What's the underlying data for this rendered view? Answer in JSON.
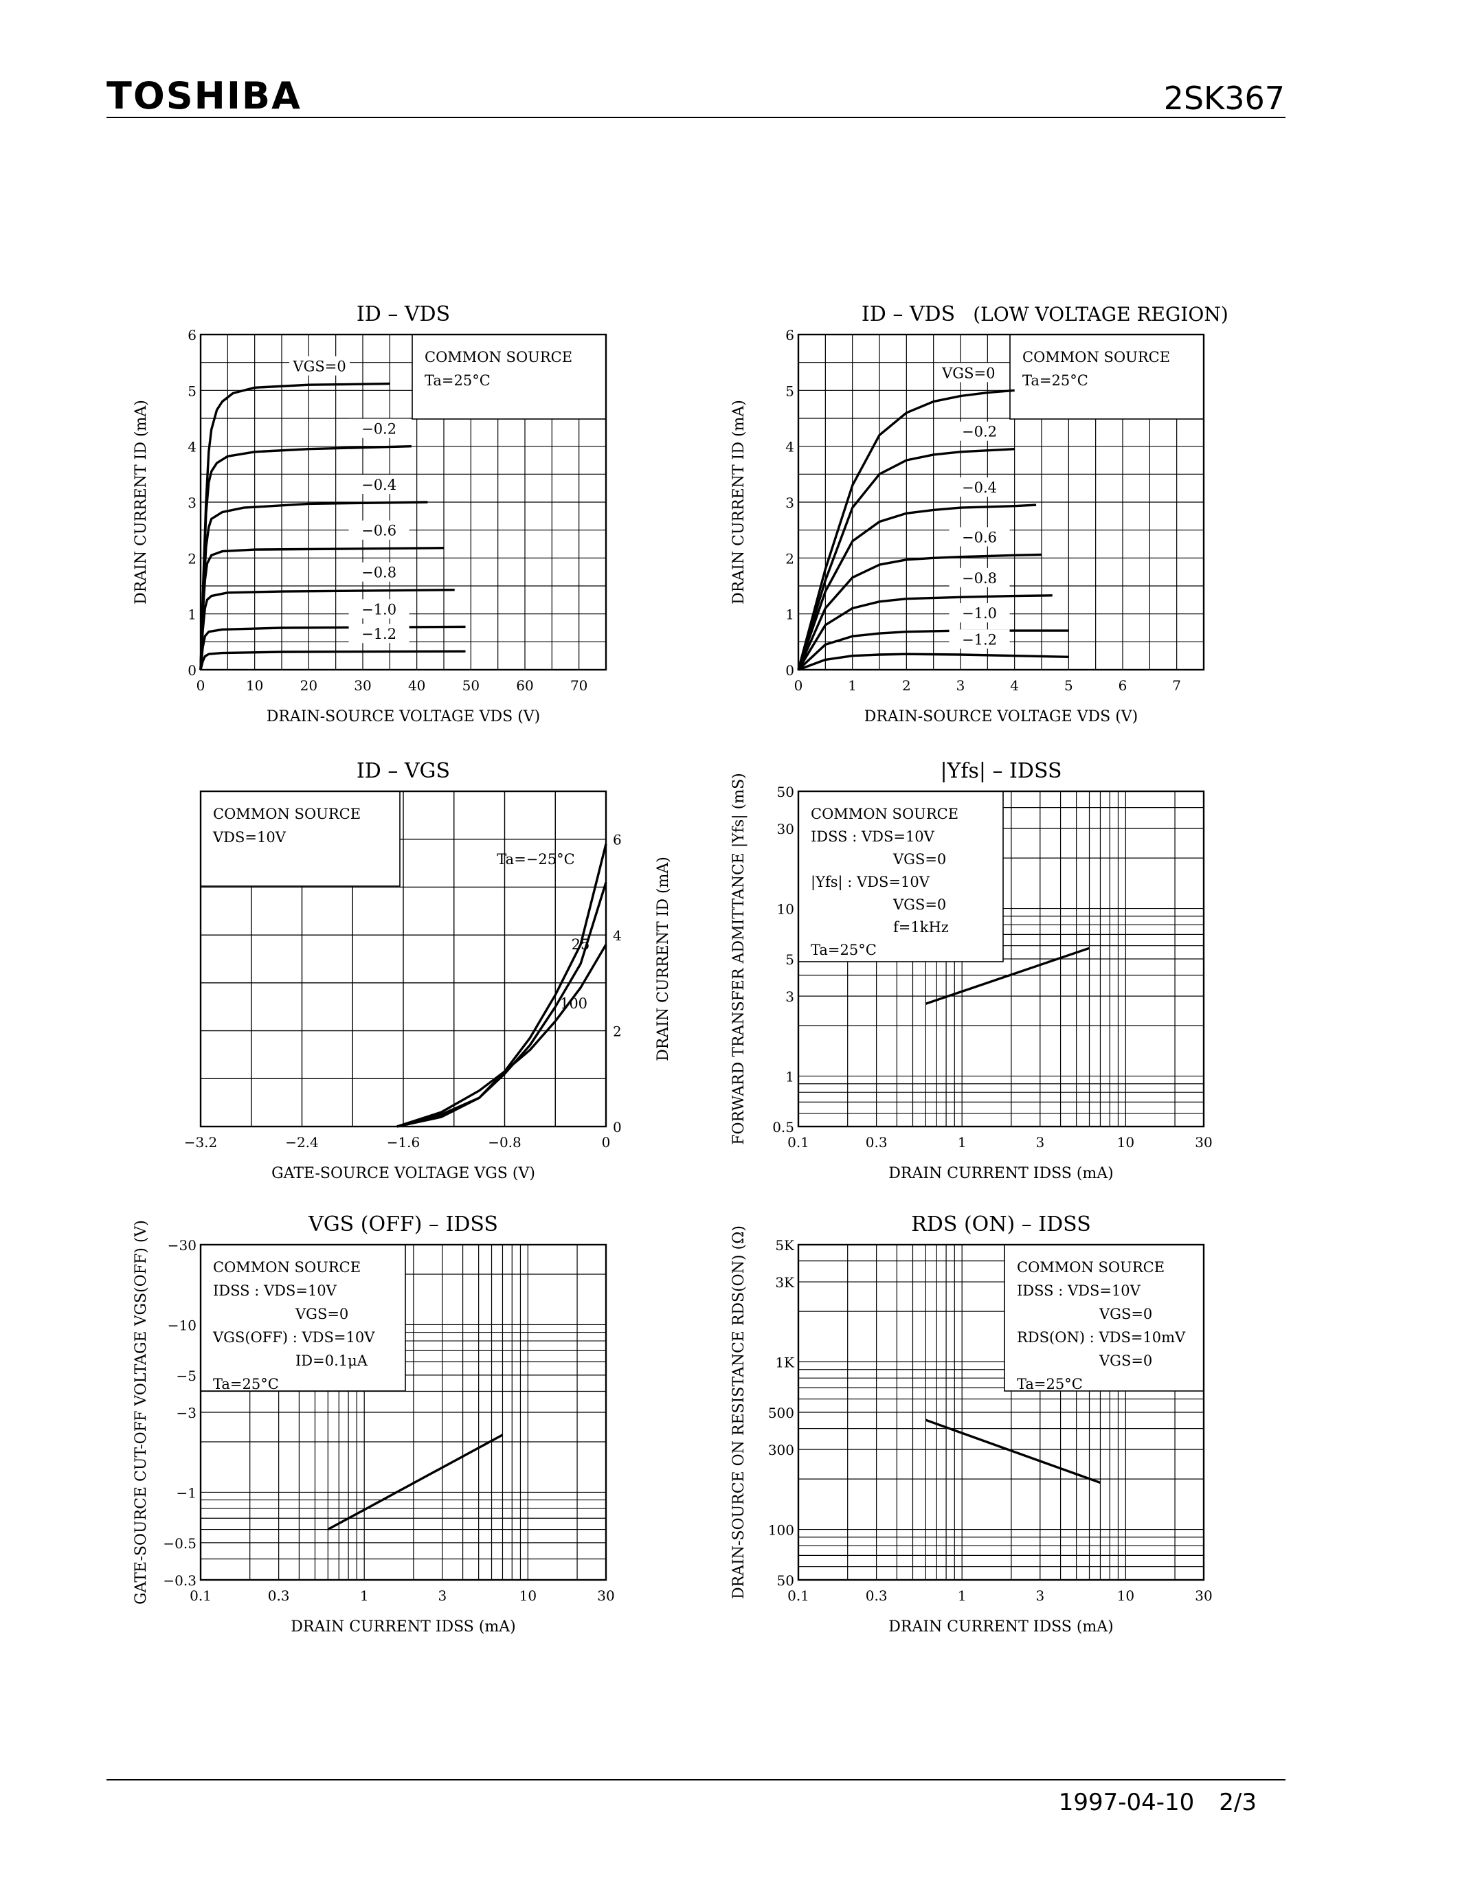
{
  "header": {
    "brand": "TOSHIBA",
    "part": "2SK367"
  },
  "footer": {
    "date": "1997-04-10",
    "page": "2/3"
  },
  "chart_data": [
    {
      "id": "c1",
      "type": "line",
      "title": "ID – VDS",
      "xlabel": "DRAIN-SOURCE VOLTAGE  VDS  (V)",
      "ylabel": "DRAIN CURRENT  ID  (mA)",
      "xlim": [
        0,
        75
      ],
      "ylim": [
        0,
        6
      ],
      "xticks": [
        "0",
        "10",
        "20",
        "30",
        "40",
        "50",
        "60",
        "70"
      ],
      "yticks": [
        "0",
        "1",
        "2",
        "3",
        "4",
        "5",
        "6"
      ],
      "legend": [
        "COMMON SOURCE",
        "Ta=25°C"
      ],
      "series": [
        {
          "name": "VGS=0",
          "points": [
            [
              0,
              0
            ],
            [
              0.5,
              1.6
            ],
            [
              1,
              3
            ],
            [
              1.5,
              3.9
            ],
            [
              2,
              4.3
            ],
            [
              3,
              4.65
            ],
            [
              4,
              4.8
            ],
            [
              6,
              4.95
            ],
            [
              10,
              5.05
            ],
            [
              20,
              5.1
            ],
            [
              35,
              5.12
            ]
          ]
        },
        {
          "name": "−0.2",
          "points": [
            [
              0,
              0
            ],
            [
              0.5,
              1.5
            ],
            [
              1,
              2.8
            ],
            [
              1.5,
              3.35
            ],
            [
              2,
              3.55
            ],
            [
              3,
              3.7
            ],
            [
              5,
              3.82
            ],
            [
              10,
              3.9
            ],
            [
              20,
              3.95
            ],
            [
              39,
              4
            ]
          ]
        },
        {
          "name": "−0.4",
          "points": [
            [
              0,
              0
            ],
            [
              0.5,
              1.3
            ],
            [
              1,
              2.2
            ],
            [
              1.5,
              2.55
            ],
            [
              2,
              2.7
            ],
            [
              4,
              2.82
            ],
            [
              8,
              2.9
            ],
            [
              20,
              2.97
            ],
            [
              42,
              3
            ]
          ]
        },
        {
          "name": "−0.6",
          "points": [
            [
              0,
              0
            ],
            [
              0.4,
              1
            ],
            [
              0.8,
              1.6
            ],
            [
              1.2,
              1.9
            ],
            [
              2,
              2.05
            ],
            [
              4,
              2.12
            ],
            [
              10,
              2.15
            ],
            [
              45,
              2.18
            ]
          ]
        },
        {
          "name": "−0.8",
          "points": [
            [
              0,
              0
            ],
            [
              0.4,
              0.7
            ],
            [
              0.8,
              1.1
            ],
            [
              1.2,
              1.25
            ],
            [
              2,
              1.32
            ],
            [
              5,
              1.38
            ],
            [
              15,
              1.4
            ],
            [
              47,
              1.43
            ]
          ]
        },
        {
          "name": "−1.0",
          "points": [
            [
              0,
              0
            ],
            [
              0.4,
              0.4
            ],
            [
              0.8,
              0.6
            ],
            [
              1.5,
              0.68
            ],
            [
              4,
              0.72
            ],
            [
              15,
              0.75
            ],
            [
              49,
              0.77
            ]
          ]
        },
        {
          "name": "−1.2",
          "points": [
            [
              0,
              0
            ],
            [
              0.4,
              0.15
            ],
            [
              0.8,
              0.24
            ],
            [
              1.5,
              0.28
            ],
            [
              4,
              0.3
            ],
            [
              15,
              0.32
            ],
            [
              49,
              0.33
            ]
          ]
        }
      ]
    },
    {
      "id": "c2",
      "type": "line",
      "title": "ID – VDS",
      "title_note": "(LOW VOLTAGE REGION)",
      "xlabel": "DRAIN-SOURCE VOLTAGE  VDS  (V)",
      "ylabel": "DRAIN CURRENT  ID  (mA)",
      "xlim": [
        0,
        7.5
      ],
      "ylim": [
        0,
        6
      ],
      "xticks": [
        "0",
        "1",
        "2",
        "3",
        "4",
        "5",
        "6",
        "7"
      ],
      "yticks": [
        "0",
        "1",
        "2",
        "3",
        "4",
        "5",
        "6"
      ],
      "legend": [
        "COMMON SOURCE",
        "Ta=25°C"
      ],
      "series": [
        {
          "name": "VGS=0",
          "points": [
            [
              0,
              0
            ],
            [
              0.5,
              1.8
            ],
            [
              1,
              3.3
            ],
            [
              1.5,
              4.2
            ],
            [
              2,
              4.6
            ],
            [
              2.5,
              4.8
            ],
            [
              3,
              4.9
            ],
            [
              3.5,
              4.96
            ],
            [
              4,
              5
            ]
          ]
        },
        {
          "name": "−0.2",
          "points": [
            [
              0,
              0
            ],
            [
              0.5,
              1.6
            ],
            [
              1,
              2.9
            ],
            [
              1.5,
              3.5
            ],
            [
              2,
              3.75
            ],
            [
              2.5,
              3.85
            ],
            [
              3,
              3.9
            ],
            [
              4,
              3.95
            ]
          ]
        },
        {
          "name": "−0.4",
          "points": [
            [
              0,
              0
            ],
            [
              0.5,
              1.4
            ],
            [
              1,
              2.3
            ],
            [
              1.5,
              2.65
            ],
            [
              2,
              2.8
            ],
            [
              2.5,
              2.86
            ],
            [
              3,
              2.9
            ],
            [
              4,
              2.93
            ],
            [
              4.4,
              2.95
            ]
          ]
        },
        {
          "name": "−0.6",
          "points": [
            [
              0,
              0
            ],
            [
              0.5,
              1.1
            ],
            [
              1,
              1.65
            ],
            [
              1.5,
              1.88
            ],
            [
              2,
              1.97
            ],
            [
              2.5,
              2
            ],
            [
              3,
              2.02
            ],
            [
              4,
              2.05
            ],
            [
              4.5,
              2.06
            ]
          ]
        },
        {
          "name": "−0.8",
          "points": [
            [
              0,
              0
            ],
            [
              0.5,
              0.8
            ],
            [
              1,
              1.1
            ],
            [
              1.5,
              1.22
            ],
            [
              2,
              1.27
            ],
            [
              3,
              1.3
            ],
            [
              4,
              1.32
            ],
            [
              4.7,
              1.33
            ]
          ]
        },
        {
          "name": "−1.0",
          "points": [
            [
              0,
              0
            ],
            [
              0.5,
              0.45
            ],
            [
              1,
              0.6
            ],
            [
              1.5,
              0.65
            ],
            [
              2,
              0.68
            ],
            [
              3,
              0.7
            ],
            [
              5,
              0.7
            ]
          ]
        },
        {
          "name": "−1.2",
          "points": [
            [
              0,
              0
            ],
            [
              0.5,
              0.18
            ],
            [
              1,
              0.25
            ],
            [
              1.5,
              0.27
            ],
            [
              2,
              0.28
            ],
            [
              3,
              0.27
            ],
            [
              5,
              0.23
            ]
          ]
        }
      ]
    },
    {
      "id": "c3",
      "type": "line",
      "title": "ID – VGS",
      "xlabel": "GATE-SOURCE VOLTAGE  VGS  (V)",
      "ylabel": "DRAIN CURRENT  ID  (mA)",
      "xlim": [
        -3.2,
        0
      ],
      "ylim": [
        0,
        7
      ],
      "xticks": [
        "−3.2",
        "−2.4",
        "−1.6",
        "−0.8",
        "0"
      ],
      "yticks": [
        "0",
        "2",
        "4",
        "6"
      ],
      "legend": [
        "COMMON SOURCE",
        "VDS=10V"
      ],
      "series": [
        {
          "name": "Ta=−25°C",
          "points": [
            [
              -1.65,
              0
            ],
            [
              -1.3,
              0.2
            ],
            [
              -1,
              0.6
            ],
            [
              -0.8,
              1.15
            ],
            [
              -0.6,
              1.85
            ],
            [
              -0.4,
              2.75
            ],
            [
              -0.2,
              3.8
            ],
            [
              0,
              5.9
            ]
          ]
        },
        {
          "name": "25",
          "points": [
            [
              -1.65,
              0
            ],
            [
              -1.3,
              0.25
            ],
            [
              -1,
              0.6
            ],
            [
              -0.8,
              1.1
            ],
            [
              -0.6,
              1.7
            ],
            [
              -0.4,
              2.5
            ],
            [
              -0.2,
              3.4
            ],
            [
              0,
              5.1
            ]
          ]
        },
        {
          "name": "100",
          "points": [
            [
              -1.65,
              0
            ],
            [
              -1.3,
              0.3
            ],
            [
              -1,
              0.75
            ],
            [
              -0.8,
              1.15
            ],
            [
              -0.6,
              1.6
            ],
            [
              -0.4,
              2.2
            ],
            [
              -0.2,
              2.9
            ],
            [
              0,
              3.8
            ]
          ]
        }
      ]
    },
    {
      "id": "c4",
      "type": "line",
      "title": "|Yfs| – IDSS",
      "xlabel": "DRAIN CURRENT  IDSS  (mA)",
      "ylabel": "FORWARD TRANSFER ADMITTANCE |Yfs| (mS)",
      "xscale": "log",
      "yscale": "log",
      "xlim": [
        0.1,
        30
      ],
      "ylim": [
        0.5,
        50
      ],
      "xticks": [
        "0.1",
        "0.3",
        "1",
        "3",
        "10",
        "30"
      ],
      "yticks": [
        "0.5",
        "1",
        "3",
        "5",
        "10",
        "30",
        "50"
      ],
      "legend": [
        "COMMON SOURCE",
        "IDSS  : VDS=10V",
        "VGS=0",
        "|Yfs|  : VDS=10V",
        "VGS=0",
        "f=1kHz",
        "Ta=25°C"
      ],
      "series": [
        {
          "name": "|Yfs|",
          "points": [
            [
              0.6,
              2.7
            ],
            [
              6,
              5.8
            ]
          ]
        }
      ]
    },
    {
      "id": "c5",
      "type": "line",
      "title": "VGS (OFF) – IDSS",
      "xlabel": "DRAIN CURRENT  IDSS  (mA)",
      "ylabel": "GATE-SOURCE CUT-OFF VOLTAGE VGS(OFF) (V)",
      "xscale": "log",
      "yscale": "log",
      "xlim": [
        0.1,
        30
      ],
      "ylim": [
        -0.3,
        -30
      ],
      "xticks": [
        "0.1",
        "0.3",
        "1",
        "3",
        "10",
        "30"
      ],
      "yticks": [
        "−0.3",
        "−0.5",
        "−1",
        "−3",
        "−5",
        "−10",
        "−30"
      ],
      "legend": [
        "COMMON SOURCE",
        "IDSS  : VDS=10V",
        "VGS=0",
        "VGS(OFF) : VDS=10V",
        "ID=0.1μA",
        "Ta=25°C"
      ],
      "series": [
        {
          "name": "VGS(OFF)",
          "points": [
            [
              0.6,
              -0.6
            ],
            [
              7,
              -2.2
            ]
          ]
        }
      ]
    },
    {
      "id": "c6",
      "type": "line",
      "title": "RDS (ON) – IDSS",
      "xlabel": "DRAIN CURRENT  IDSS  (mA)",
      "ylabel": "DRAIN-SOURCE ON RESISTANCE RDS(ON) (Ω)",
      "xscale": "log",
      "yscale": "log",
      "xlim": [
        0.1,
        30
      ],
      "ylim": [
        50,
        5000
      ],
      "xticks": [
        "0.1",
        "0.3",
        "1",
        "3",
        "10",
        "30"
      ],
      "yticks": [
        "50",
        "100",
        "300",
        "500",
        "1K",
        "3K",
        "5K"
      ],
      "legend": [
        "COMMON SOURCE",
        "IDSS  : VDS=10V",
        "VGS=0",
        "RDS(ON) : VDS=10mV",
        "VGS=0",
        "Ta=25°C"
      ],
      "series": [
        {
          "name": "RDS(ON)",
          "points": [
            [
              0.6,
              450
            ],
            [
              7,
              190
            ]
          ]
        }
      ]
    }
  ]
}
